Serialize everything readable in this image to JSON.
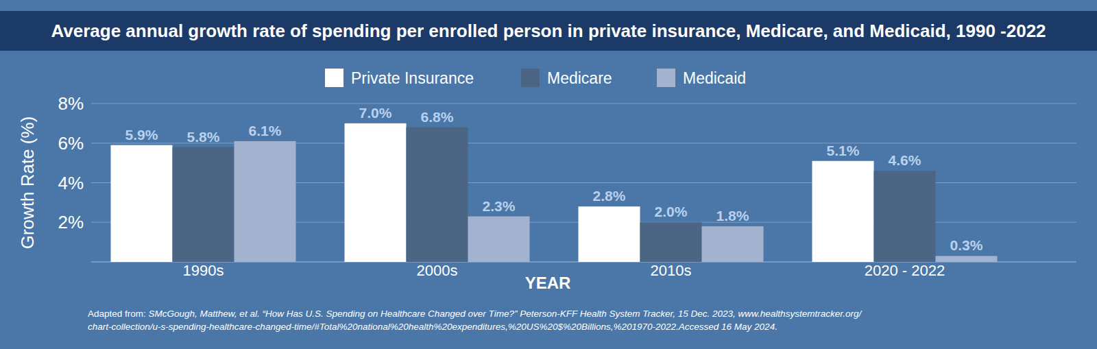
{
  "chart_data": {
    "type": "bar",
    "title": "Average annual growth rate of spending per enrolled person in private insurance, Medicare, and Medicaid, 1990 -2022",
    "x_label": "YEAR",
    "y_label": "Growth Rate (%)",
    "categories": [
      "1990s",
      "2000s",
      "2010s",
      "2020 - 2022"
    ],
    "series": [
      {
        "name": "Private Insurance",
        "color": "#ffffff",
        "values": [
          5.9,
          7.0,
          2.8,
          5.1
        ],
        "value_labels": [
          "5.9%",
          "7.0%",
          "2.8%",
          "5.1%"
        ]
      },
      {
        "name": "Medicare",
        "color": "#4b6584",
        "values": [
          5.8,
          6.8,
          2.0,
          4.6
        ],
        "value_labels": [
          "5.8%",
          "6.8%",
          "2.0%",
          "4.6%"
        ]
      },
      {
        "name": "Medicaid",
        "color": "#a2b2cf",
        "values": [
          6.1,
          2.3,
          1.8,
          0.3
        ],
        "value_labels": [
          "6.1%",
          "2.3%",
          "1.8%",
          "0.3%"
        ]
      }
    ],
    "ylim": [
      0,
      8
    ],
    "yticks": [
      {
        "value": 2,
        "label": "2%"
      },
      {
        "value": 4,
        "label": "4%"
      },
      {
        "value": 6,
        "label": "6%"
      },
      {
        "value": 8,
        "label": "8%"
      }
    ],
    "grid": true,
    "legend": "top",
    "data_labels": true,
    "source_prefix": "Adapted from: ",
    "source_lines": [
      "SMcGough, Matthew, et al. “How Has U.S. Spending on Healthcare Changed over Time?” Peterson-KFF Health System Tracker, 15 Dec. 2023, www.healthsystemtracker.org/",
      "chart-collection/u-s-spending-healthcare-changed-time/#Total%20national%20health%20expenditures,%20US%20$%20Billions,%201970-2022.Accessed 16 May 2024."
    ]
  }
}
